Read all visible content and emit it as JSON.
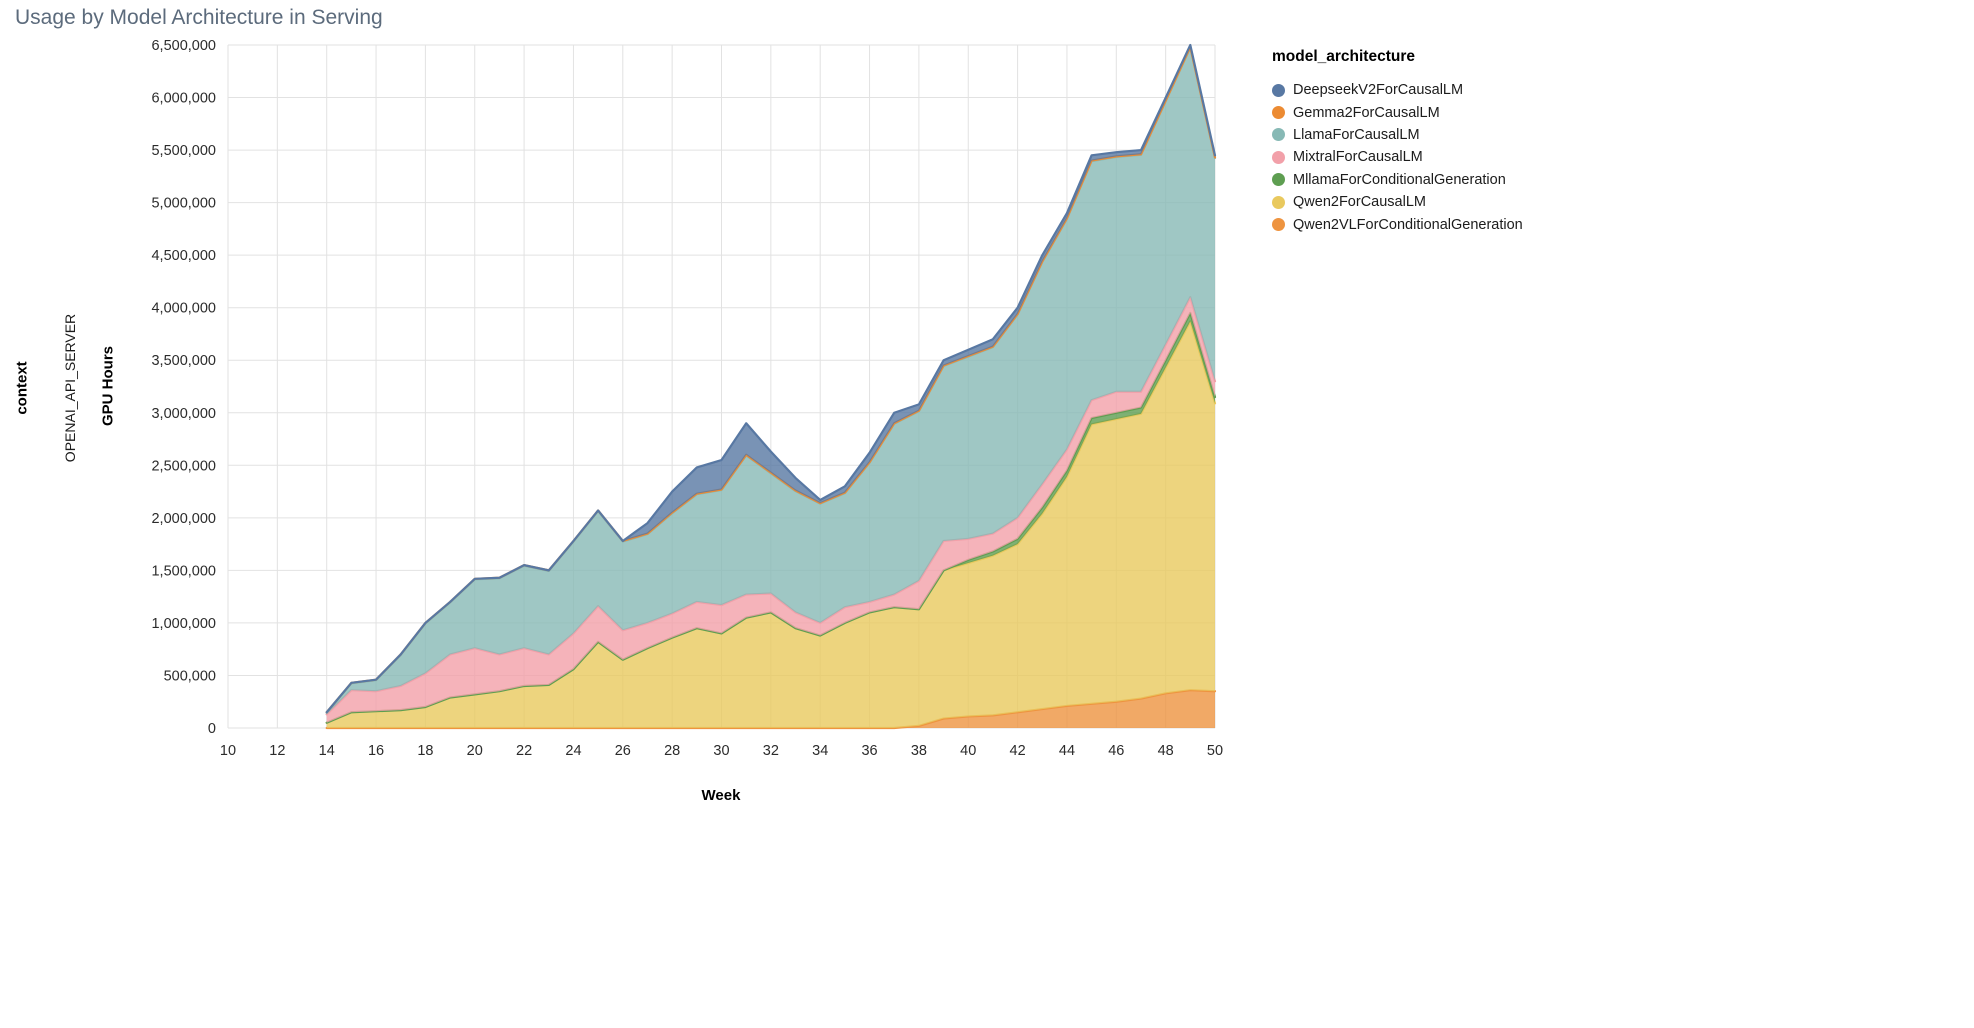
{
  "page": {
    "title": "Usage by Model Architecture in Serving"
  },
  "facet": {
    "title": "context",
    "value": "OPENAI_API_SERVER"
  },
  "chart_data": {
    "type": "area",
    "stacked": true,
    "title": "Usage by Model Architecture in Serving",
    "xlabel": "Week",
    "ylabel": "GPU Hours",
    "xlim": [
      10,
      50
    ],
    "ylim": [
      0,
      6500000
    ],
    "x_tick_step": 2,
    "y_tick_step": 500000,
    "grid": true,
    "legend": {
      "title": "model_architecture",
      "position": "right",
      "items": [
        {
          "label": "DeepseekV2ForCausalLM",
          "color": "#5878a3"
        },
        {
          "label": "Gemma2ForCausalLM",
          "color": "#ec8b33"
        },
        {
          "label": "LlamaForCausalLM",
          "color": "#87b9b5"
        },
        {
          "label": "MixtralForCausalLM",
          "color": "#f2a0a9"
        },
        {
          "label": "MllamaForConditionalGeneration",
          "color": "#5e9e51"
        },
        {
          "label": "Qwen2ForCausalLM",
          "color": "#e9c95e"
        },
        {
          "label": "Qwen2VLForConditionalGeneration",
          "color": "#ee9440"
        }
      ]
    },
    "x": [
      14,
      15,
      16,
      17,
      18,
      19,
      20,
      21,
      22,
      23,
      24,
      25,
      26,
      27,
      28,
      29,
      30,
      31,
      32,
      33,
      34,
      35,
      36,
      37,
      38,
      39,
      40,
      41,
      42,
      43,
      44,
      45,
      46,
      47,
      48,
      49,
      50
    ],
    "stack_order_note": "series listed bottom-to-top of the stack",
    "series": [
      {
        "name": "Qwen2VLForConditionalGeneration",
        "color": "#ee9440",
        "values": [
          0,
          0,
          0,
          0,
          0,
          0,
          0,
          0,
          0,
          0,
          0,
          0,
          0,
          0,
          0,
          0,
          0,
          0,
          0,
          0,
          0,
          0,
          0,
          0,
          20000,
          90000,
          110000,
          120000,
          150000,
          180000,
          210000,
          230000,
          250000,
          280000,
          330000,
          360000,
          350000
        ]
      },
      {
        "name": "Qwen2ForCausalLM",
        "color": "#e9c95e",
        "values": [
          50000,
          150000,
          160000,
          170000,
          200000,
          290000,
          320000,
          350000,
          400000,
          410000,
          560000,
          820000,
          650000,
          760000,
          860000,
          950000,
          900000,
          1050000,
          1100000,
          950000,
          880000,
          1000000,
          1100000,
          1150000,
          1110000,
          1410000,
          1460000,
          1520000,
          1600000,
          1860000,
          2180000,
          2660000,
          2690000,
          2710000,
          3100000,
          3510000,
          2740000
        ]
      },
      {
        "name": "MllamaForConditionalGeneration",
        "color": "#5e9e51",
        "values": [
          0,
          0,
          0,
          0,
          0,
          0,
          0,
          0,
          0,
          0,
          0,
          0,
          0,
          0,
          0,
          0,
          0,
          0,
          0,
          0,
          0,
          0,
          0,
          0,
          0,
          0,
          30000,
          40000,
          50000,
          60000,
          60000,
          60000,
          60000,
          60000,
          70000,
          80000,
          60000
        ]
      },
      {
        "name": "MixtralForCausalLM",
        "color": "#f2a0a9",
        "values": [
          80000,
          210000,
          190000,
          230000,
          320000,
          410000,
          440000,
          350000,
          360000,
          290000,
          340000,
          340000,
          280000,
          240000,
          230000,
          250000,
          270000,
          220000,
          180000,
          150000,
          120000,
          150000,
          100000,
          120000,
          270000,
          280000,
          200000,
          170000,
          200000,
          220000,
          200000,
          170000,
          200000,
          150000,
          150000,
          150000,
          150000
        ]
      },
      {
        "name": "LlamaForCausalLM",
        "color": "#87b9b5",
        "values": [
          15000,
          65000,
          105000,
          295000,
          475000,
          495000,
          655000,
          725000,
          785000,
          795000,
          875000,
          905000,
          845000,
          845000,
          955000,
          1025000,
          1095000,
          1325000,
          1145000,
          1155000,
          1135000,
          1085000,
          1325000,
          1625000,
          1615000,
          1665000,
          1735000,
          1775000,
          1935000,
          2115000,
          2195000,
          2275000,
          2235000,
          2255000,
          2315000,
          2375000,
          2125000
        ]
      },
      {
        "name": "Gemma2ForCausalLM",
        "color": "#ec8b33",
        "values": [
          5000,
          5000,
          5000,
          5000,
          5000,
          5000,
          5000,
          5000,
          5000,
          5000,
          5000,
          5000,
          5000,
          5000,
          5000,
          5000,
          5000,
          5000,
          5000,
          5000,
          5000,
          5000,
          5000,
          5000,
          5000,
          5000,
          5000,
          5000,
          5000,
          5000,
          5000,
          5000,
          5000,
          5000,
          5000,
          5000,
          5000
        ]
      },
      {
        "name": "DeepseekV2ForCausalLM",
        "color": "#5878a3",
        "values": [
          0,
          0,
          0,
          0,
          0,
          0,
          0,
          0,
          0,
          0,
          0,
          0,
          0,
          100000,
          200000,
          250000,
          280000,
          300000,
          200000,
          120000,
          30000,
          60000,
          90000,
          100000,
          60000,
          50000,
          60000,
          70000,
          60000,
          60000,
          50000,
          50000,
          40000,
          40000,
          30000,
          20000,
          20000
        ]
      }
    ]
  }
}
